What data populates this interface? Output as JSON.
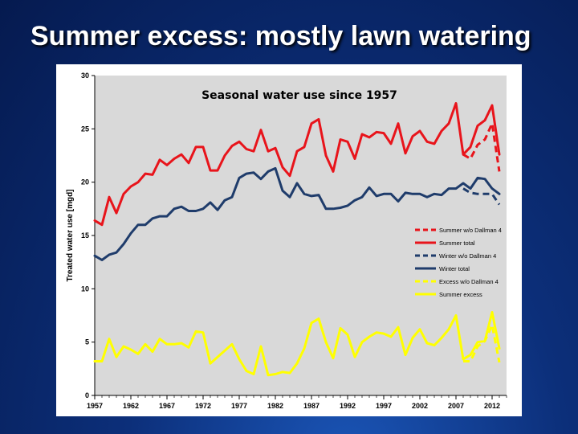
{
  "slide": {
    "title": "Summer excess: mostly lawn watering"
  },
  "chart_data": {
    "type": "line",
    "title": "Seasonal water use since 1957",
    "xlabel": "",
    "ylabel": "Treated water use [mgd]",
    "xlim": [
      1957,
      2014
    ],
    "ylim": [
      0,
      30
    ],
    "x_ticks": [
      1957,
      1962,
      1967,
      1972,
      1977,
      1982,
      1987,
      1992,
      1997,
      2002,
      2007,
      2012
    ],
    "y_ticks": [
      0,
      5,
      10,
      15,
      20,
      25,
      30
    ],
    "grid": false,
    "legend_position": "right",
    "series": [
      {
        "name": "Summer w/o Dallman 4",
        "color": "#e8141b",
        "dash": true,
        "x": [
          2008,
          2009,
          2010,
          2011,
          2012,
          2013
        ],
        "y": [
          22.6,
          22.2,
          23.5,
          24.0,
          25.5,
          21.0
        ]
      },
      {
        "name": "Summer total",
        "color": "#e8141b",
        "dash": false,
        "x": [
          1957,
          1958,
          1959,
          1960,
          1961,
          1962,
          1963,
          1964,
          1965,
          1966,
          1967,
          1968,
          1969,
          1970,
          1971,
          1972,
          1973,
          1974,
          1975,
          1976,
          1977,
          1978,
          1979,
          1980,
          1981,
          1982,
          1983,
          1984,
          1985,
          1986,
          1987,
          1988,
          1989,
          1990,
          1991,
          1992,
          1993,
          1994,
          1995,
          1996,
          1997,
          1998,
          1999,
          2000,
          2001,
          2002,
          2003,
          2004,
          2005,
          2006,
          2007,
          2008,
          2009,
          2010,
          2011,
          2012,
          2013
        ],
        "y": [
          16.4,
          16.0,
          18.6,
          17.1,
          18.9,
          19.6,
          20.0,
          20.8,
          20.7,
          22.1,
          21.6,
          22.2,
          22.6,
          21.8,
          23.3,
          23.3,
          21.1,
          21.1,
          22.5,
          23.4,
          23.8,
          23.1,
          22.9,
          24.9,
          22.9,
          23.2,
          21.4,
          20.6,
          22.9,
          23.3,
          25.5,
          25.9,
          22.5,
          21.0,
          24.0,
          23.8,
          22.2,
          24.5,
          24.2,
          24.7,
          24.6,
          23.6,
          25.5,
          22.7,
          24.3,
          24.8,
          23.8,
          23.6,
          24.8,
          25.5,
          27.4,
          22.6,
          23.3,
          25.3,
          25.8,
          27.2,
          22.6
        ]
      },
      {
        "name": "Winter w/o Dallman 4",
        "color": "#1f3c6b",
        "dash": true,
        "x": [
          2008,
          2009,
          2010,
          2011,
          2012,
          2013
        ],
        "y": [
          19.4,
          19.0,
          18.9,
          18.9,
          18.9,
          17.9
        ]
      },
      {
        "name": "Winter total",
        "color": "#1f3c6b",
        "dash": false,
        "x": [
          1957,
          1958,
          1959,
          1960,
          1961,
          1962,
          1963,
          1964,
          1965,
          1966,
          1967,
          1968,
          1969,
          1970,
          1971,
          1972,
          1973,
          1974,
          1975,
          1976,
          1977,
          1978,
          1979,
          1980,
          1981,
          1982,
          1983,
          1984,
          1985,
          1986,
          1987,
          1988,
          1989,
          1990,
          1991,
          1992,
          1993,
          1994,
          1995,
          1996,
          1997,
          1998,
          1999,
          2000,
          2001,
          2002,
          2003,
          2004,
          2005,
          2006,
          2007,
          2008,
          2009,
          2010,
          2011,
          2012,
          2013
        ],
        "y": [
          13.1,
          12.7,
          13.2,
          13.4,
          14.2,
          15.2,
          16.0,
          16.0,
          16.6,
          16.8,
          16.8,
          17.5,
          17.7,
          17.3,
          17.3,
          17.5,
          18.1,
          17.4,
          18.3,
          18.6,
          20.4,
          20.8,
          20.9,
          20.3,
          21.0,
          21.3,
          19.2,
          18.6,
          19.9,
          18.9,
          18.7,
          18.8,
          17.5,
          17.5,
          17.6,
          17.8,
          18.3,
          18.6,
          19.5,
          18.7,
          18.9,
          18.9,
          18.2,
          19.0,
          18.9,
          18.9,
          18.6,
          18.9,
          18.8,
          19.4,
          19.4,
          19.9,
          19.4,
          20.4,
          20.3,
          19.4,
          18.9
        ]
      },
      {
        "name": "Excess w/o Dallman 4",
        "color": "#ffff00",
        "dash": true,
        "x": [
          2008,
          2009,
          2010,
          2011,
          2012,
          2013
        ],
        "y": [
          3.2,
          3.2,
          4.6,
          5.1,
          6.6,
          3.1
        ]
      },
      {
        "name": "Summer excess",
        "color": "#ffff00",
        "dash": false,
        "x": [
          1957,
          1958,
          1959,
          1960,
          1961,
          1962,
          1963,
          1964,
          1965,
          1966,
          1967,
          1968,
          1969,
          1970,
          1971,
          1972,
          1973,
          1974,
          1975,
          1976,
          1977,
          1978,
          1979,
          1980,
          1981,
          1982,
          1983,
          1984,
          1985,
          1986,
          1987,
          1988,
          1989,
          1990,
          1991,
          1992,
          1993,
          1994,
          1995,
          1996,
          1997,
          1998,
          1999,
          2000,
          2001,
          2002,
          2003,
          2004,
          2005,
          2006,
          2007,
          2008,
          2009,
          2010,
          2011,
          2012,
          2013
        ],
        "y": [
          3.2,
          3.2,
          5.3,
          3.6,
          4.6,
          4.3,
          3.9,
          4.8,
          4.1,
          5.3,
          4.8,
          4.8,
          4.9,
          4.5,
          6.0,
          5.9,
          3.0,
          3.6,
          4.2,
          4.8,
          3.4,
          2.3,
          2.0,
          4.6,
          1.9,
          2.0,
          2.2,
          2.1,
          3.0,
          4.4,
          6.8,
          7.2,
          5.0,
          3.5,
          6.3,
          5.7,
          3.6,
          5.0,
          5.5,
          5.9,
          5.8,
          5.5,
          6.4,
          3.8,
          5.4,
          6.2,
          4.9,
          4.7,
          5.4,
          6.2,
          7.5,
          3.4,
          3.8,
          5.0,
          5.1,
          7.8,
          4.4
        ]
      }
    ]
  }
}
